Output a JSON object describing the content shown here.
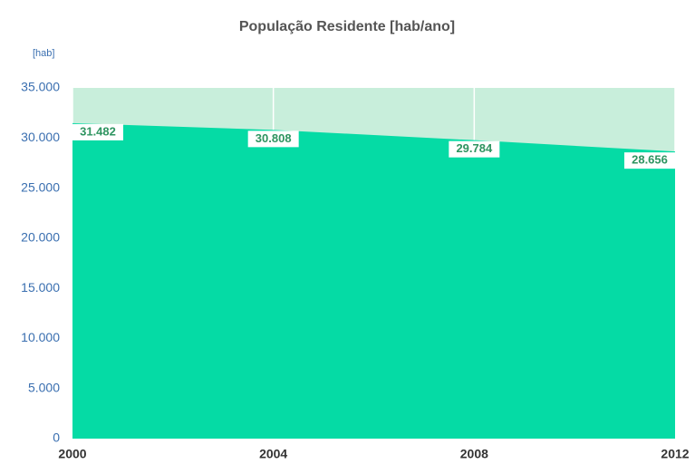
{
  "chart_data": {
    "type": "area",
    "title": "População Residente [hab/ano]",
    "y_label": "[hab]",
    "x": [
      2000,
      2004,
      2008,
      2012
    ],
    "values": [
      31482,
      30808,
      29784,
      28656
    ],
    "value_labels": [
      "31.482",
      "30.808",
      "29.784",
      "28.656"
    ],
    "color": "#05dba5",
    "background_color": "#c8eedb",
    "label_color": "#2e9460",
    "xlim": [
      2000,
      2012
    ],
    "xticks": [
      2000,
      2004,
      2008,
      2012
    ],
    "ylim": [
      0,
      35000
    ],
    "yticks": [
      {
        "value": 0,
        "label": "0"
      },
      {
        "value": 5000,
        "label": "5.000"
      },
      {
        "value": 10000,
        "label": "10.000"
      },
      {
        "value": 15000,
        "label": "15.000"
      },
      {
        "value": 20000,
        "label": "20.000"
      },
      {
        "value": 25000,
        "label": "25.000"
      },
      {
        "value": 30000,
        "label": "30.000"
      },
      {
        "value": 35000,
        "label": "35.000"
      }
    ],
    "grid": "x"
  }
}
